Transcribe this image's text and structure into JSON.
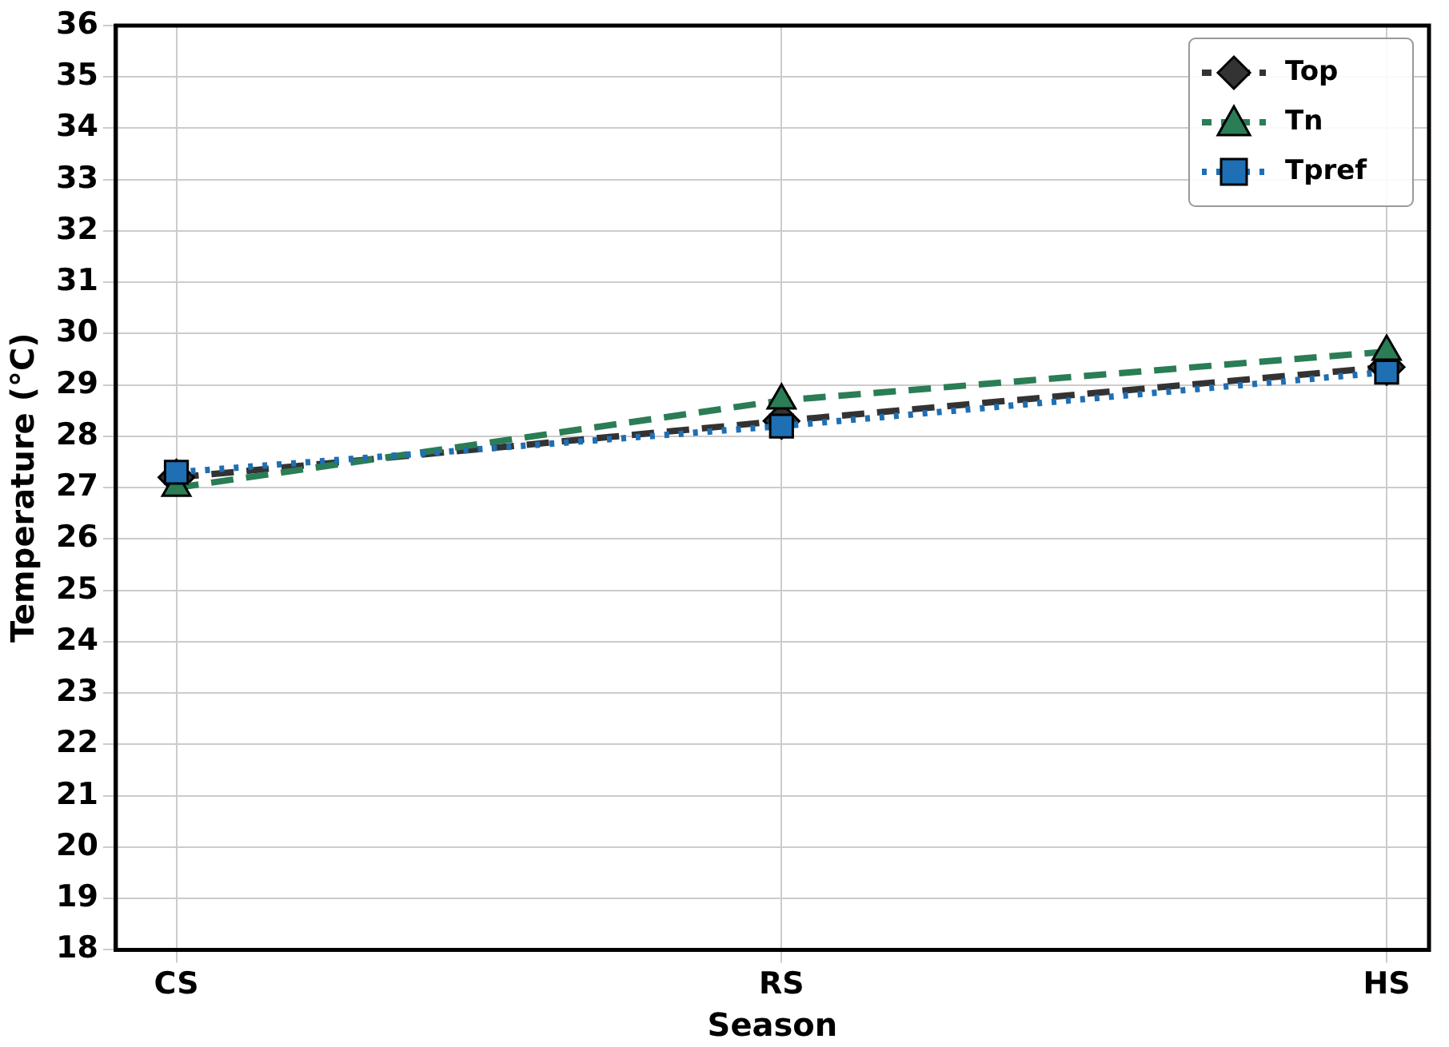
{
  "chart_data": {
    "type": "line",
    "xlabel": "Season",
    "ylabel": "Temperature (°C)",
    "categories": [
      "CS",
      "RS",
      "HS"
    ],
    "series": [
      {
        "name": "Top",
        "color": "#333333",
        "marker": "diamond",
        "line_style": "dashed",
        "values": [
          27.2,
          28.3,
          29.35
        ]
      },
      {
        "name": "Tn",
        "color": "#2a7d55",
        "marker": "triangle",
        "line_style": "dashed",
        "values": [
          27.0,
          28.7,
          29.65
        ]
      },
      {
        "name": "Tpref",
        "color": "#1f6fb4",
        "marker": "square",
        "line_style": "dotted",
        "values": [
          27.3,
          28.2,
          29.25
        ]
      }
    ],
    "ylim": [
      18,
      36
    ],
    "yticks": [
      18,
      19,
      20,
      21,
      22,
      23,
      24,
      25,
      26,
      27,
      28,
      29,
      30,
      31,
      32,
      33,
      34,
      35,
      36
    ],
    "grid": true,
    "legend": "top right"
  }
}
